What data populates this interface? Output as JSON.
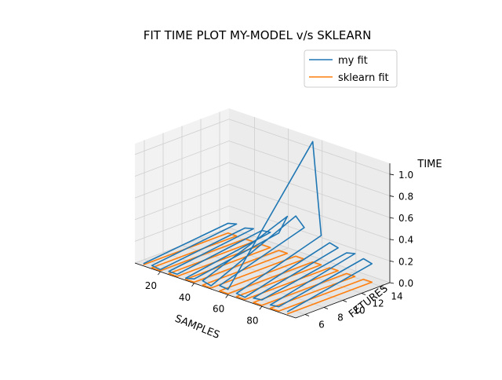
{
  "chart_data": {
    "type": "line",
    "projection": "3d",
    "title": "FIT TIME PLOT MY-MODEL v/s SKLEARN",
    "xlabel": "SAMPLES",
    "ylabel": "FETURES",
    "zlabel": "TIME",
    "xlim": [
      5,
      100
    ],
    "ylim": [
      5,
      15
    ],
    "zlim": [
      0,
      1.1
    ],
    "xticks": [
      "20",
      "40",
      "60",
      "80"
    ],
    "yticks": [
      "6",
      "8",
      "10",
      "12",
      "14"
    ],
    "zticks": [
      "0.0",
      "0.2",
      "0.4",
      "0.6",
      "0.8",
      "1.0"
    ],
    "grid": true,
    "legend_position": "upper-right",
    "colors": {
      "my fit": "#1f77b4",
      "sklearn fit": "#ff7f0e"
    },
    "sweep": {
      "samples": [
        10,
        15,
        20,
        25,
        30,
        35,
        40,
        45,
        50,
        55,
        60,
        65,
        70,
        75,
        80,
        85,
        90,
        95
      ],
      "features": [
        5,
        14
      ]
    },
    "series": [
      {
        "name": "my fit",
        "times_at_features_5": [
          0.02,
          0.03,
          0.02,
          0.03,
          0.03,
          0.02,
          0.04,
          0.05,
          0.03,
          0.06,
          0.05,
          0.04,
          0.03,
          0.05,
          0.06,
          0.04,
          0.05,
          0.03
        ],
        "times_at_features_14": [
          0.1,
          0.12,
          0.11,
          0.13,
          0.14,
          0.15,
          0.17,
          0.35,
          0.38,
          0.3,
          1.12,
          0.28,
          0.24,
          0.22,
          0.2,
          0.22,
          0.2,
          0.18
        ]
      },
      {
        "name": "sklearn fit",
        "times_at_features_5": [
          0.01,
          0.01,
          0.01,
          0.01,
          0.01,
          0.01,
          0.01,
          0.01,
          0.01,
          0.01,
          0.01,
          0.01,
          0.01,
          0.01,
          0.01,
          0.01,
          0.01,
          0.01
        ],
        "times_at_features_14": [
          0.01,
          0.01,
          0.01,
          0.01,
          0.01,
          0.01,
          0.01,
          0.01,
          0.01,
          0.01,
          0.01,
          0.01,
          0.01,
          0.01,
          0.01,
          0.01,
          0.01,
          0.01
        ]
      }
    ]
  }
}
